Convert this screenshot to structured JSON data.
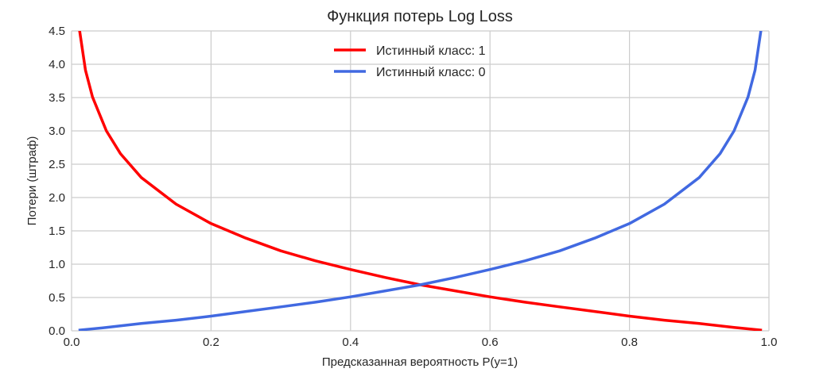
{
  "chart_data": {
    "type": "line",
    "title": "Функция потерь Log Loss",
    "xlabel": "Предсказанная вероятность P(y=1)",
    "ylabel": "Потери (штраф)",
    "xlim": [
      0.0,
      1.0
    ],
    "ylim": [
      0.0,
      4.5
    ],
    "x_ticks": [
      "0.0",
      "0.2",
      "0.4",
      "0.6",
      "0.8",
      "1.0"
    ],
    "y_ticks": [
      "0.0",
      "0.5",
      "1.0",
      "1.5",
      "2.0",
      "2.5",
      "3.0",
      "3.5",
      "4.0",
      "4.5"
    ],
    "grid": true,
    "legend_position": "top-center",
    "series": [
      {
        "name": "Истинный класс: 1",
        "color": "#ff0000",
        "x": [
          0.01,
          0.02,
          0.03,
          0.05,
          0.07,
          0.1,
          0.15,
          0.2,
          0.25,
          0.3,
          0.35,
          0.4,
          0.45,
          0.5,
          0.55,
          0.6,
          0.65,
          0.7,
          0.75,
          0.8,
          0.85,
          0.9,
          0.95,
          0.99
        ],
        "y": [
          4.61,
          3.91,
          3.51,
          3.0,
          2.66,
          2.3,
          1.9,
          1.61,
          1.39,
          1.2,
          1.05,
          0.92,
          0.8,
          0.69,
          0.6,
          0.51,
          0.43,
          0.36,
          0.29,
          0.22,
          0.16,
          0.11,
          0.05,
          0.01
        ]
      },
      {
        "name": "Истинный класс: 0",
        "color": "#4169e1",
        "x": [
          0.01,
          0.05,
          0.1,
          0.15,
          0.2,
          0.25,
          0.3,
          0.35,
          0.4,
          0.45,
          0.5,
          0.55,
          0.6,
          0.65,
          0.7,
          0.75,
          0.8,
          0.85,
          0.9,
          0.93,
          0.95,
          0.97,
          0.98,
          0.99
        ],
        "y": [
          0.01,
          0.05,
          0.11,
          0.16,
          0.22,
          0.29,
          0.36,
          0.43,
          0.51,
          0.6,
          0.69,
          0.8,
          0.92,
          1.05,
          1.2,
          1.39,
          1.61,
          1.9,
          2.3,
          2.66,
          3.0,
          3.51,
          3.91,
          4.61
        ]
      }
    ]
  }
}
